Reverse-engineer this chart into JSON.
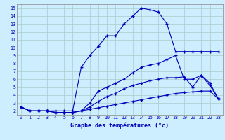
{
  "xlabel": "Graphe des températures (°c)",
  "background_color": "#cceeff",
  "grid_color": "#aacccc",
  "line_color": "#0000bb",
  "x": [
    0,
    1,
    2,
    3,
    4,
    5,
    6,
    7,
    8,
    9,
    10,
    11,
    12,
    13,
    14,
    15,
    16,
    17,
    18,
    19,
    20,
    21,
    22,
    23
  ],
  "series1": [
    2.5,
    2.0,
    2.0,
    2.0,
    2.0,
    2.0,
    2.0,
    7.5,
    9.0,
    10.2,
    11.5,
    11.5,
    13.0,
    14.0,
    15.0,
    14.8,
    14.5,
    13.0,
    9.5,
    9.5,
    9.5,
    9.5,
    9.5,
    9.5
  ],
  "series2": [
    2.5,
    2.0,
    2.0,
    2.0,
    1.8,
    1.8,
    1.8,
    2.0,
    3.0,
    4.5,
    5.0,
    5.5,
    6.0,
    6.8,
    7.5,
    7.8,
    8.0,
    8.5,
    9.0,
    6.0,
    6.0,
    6.5,
    5.2,
    3.5
  ],
  "series3": [
    2.5,
    2.0,
    2.0,
    2.0,
    1.8,
    1.8,
    1.8,
    2.0,
    2.5,
    3.2,
    3.8,
    4.2,
    4.8,
    5.2,
    5.5,
    5.8,
    6.0,
    6.2,
    6.2,
    6.3,
    5.0,
    6.5,
    5.5,
    3.5
  ],
  "series4": [
    2.5,
    2.0,
    2.0,
    2.0,
    1.8,
    1.8,
    1.8,
    2.0,
    2.2,
    2.4,
    2.6,
    2.8,
    3.0,
    3.2,
    3.4,
    3.6,
    3.8,
    4.0,
    4.2,
    4.3,
    4.4,
    4.5,
    4.5,
    3.5
  ],
  "ylim": [
    1.5,
    15.5
  ],
  "yticks": [
    2,
    3,
    4,
    5,
    6,
    7,
    8,
    9,
    10,
    11,
    12,
    13,
    14,
    15
  ],
  "xlim": [
    -0.5,
    23.5
  ],
  "figsize": [
    3.2,
    2.0
  ],
  "dpi": 100
}
